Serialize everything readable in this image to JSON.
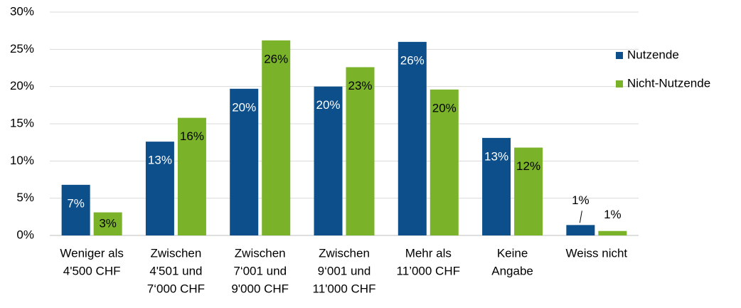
{
  "chart_data": {
    "type": "bar",
    "categories": [
      [
        "Weniger als",
        "4'500 CHF"
      ],
      [
        "Zwischen",
        "4'501 und",
        "7‘000 CHF"
      ],
      [
        "Zwischen",
        "7‘001 und",
        "9'000 CHF"
      ],
      [
        "Zwischen",
        "9‘001 und",
        "11'000 CHF"
      ],
      [
        "Mehr als",
        "11’000 CHF"
      ],
      [
        "Keine",
        "Angabe"
      ],
      [
        "Weiss nicht"
      ]
    ],
    "series": [
      {
        "name": "Nutzende",
        "color": "#0d4f8b",
        "values": [
          6.8,
          12.6,
          19.7,
          20.0,
          26.0,
          13.1,
          1.4
        ],
        "value_labels": [
          "7%",
          "13%",
          "20%",
          "20%",
          "26%",
          "13%",
          "1%"
        ]
      },
      {
        "name": "Nicht-Nutzende",
        "color": "#7ab32a",
        "values": [
          3.1,
          15.8,
          26.2,
          22.6,
          19.6,
          11.8,
          0.6
        ],
        "value_labels": [
          "3%",
          "16%",
          "26%",
          "23%",
          "20%",
          "12%",
          "1%"
        ]
      }
    ],
    "ylim": [
      0,
      30
    ],
    "yticks": [
      {
        "value": 0,
        "label": "0%"
      },
      {
        "value": 5,
        "label": "5%"
      },
      {
        "value": 10,
        "label": "10%"
      },
      {
        "value": 15,
        "label": "15%"
      },
      {
        "value": 20,
        "label": "20%"
      },
      {
        "value": 25,
        "label": "25%"
      },
      {
        "value": 30,
        "label": "30%"
      }
    ],
    "grid": true,
    "legend": "right"
  }
}
